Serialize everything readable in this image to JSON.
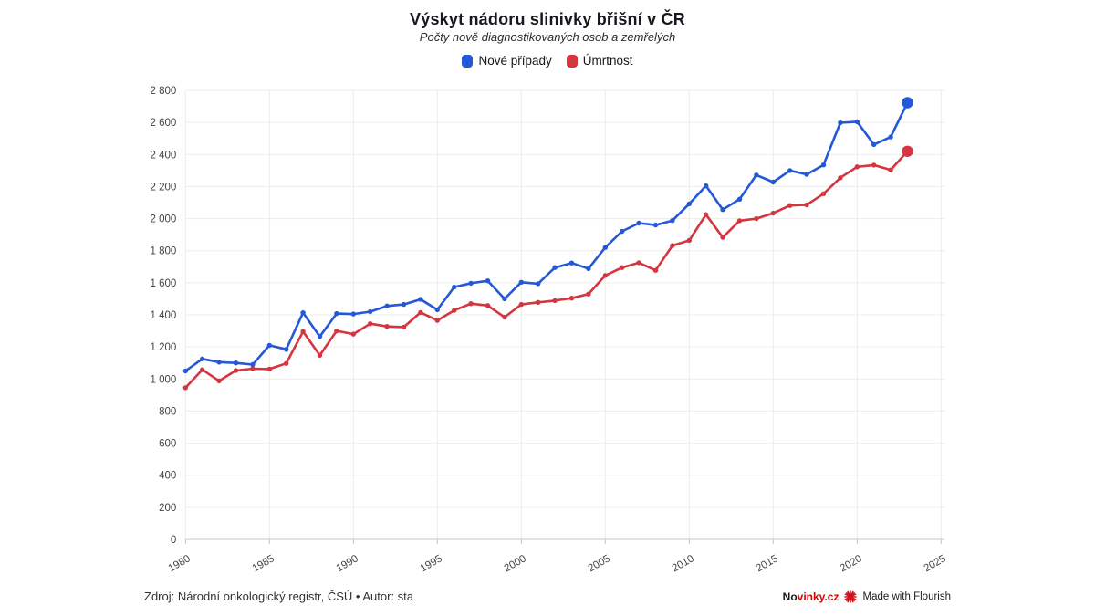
{
  "chart_data": {
    "type": "line",
    "title": "Výskyt nádoru slinivky břišní v ČR",
    "subtitle": "Počty nově diagnostikovaných osob a zemřelých",
    "xlabel": "",
    "ylabel": "",
    "xlim": [
      1980,
      2025
    ],
    "ylim": [
      0,
      2800
    ],
    "grid": true,
    "legend_position": "top",
    "x": [
      1980,
      1981,
      1982,
      1983,
      1984,
      1985,
      1986,
      1987,
      1988,
      1989,
      1990,
      1991,
      1992,
      1993,
      1994,
      1995,
      1996,
      1997,
      1998,
      1999,
      2000,
      2001,
      2002,
      2003,
      2004,
      2005,
      2006,
      2007,
      2008,
      2009,
      2010,
      2011,
      2012,
      2013,
      2014,
      2015,
      2016,
      2017,
      2018,
      2019,
      2020,
      2021,
      2022,
      2023
    ],
    "series": [
      {
        "name": "Nové případy",
        "color": "#2458d6",
        "values": [
          1050,
          1125,
          1105,
          1100,
          1090,
          1210,
          1185,
          1413,
          1265,
          1408,
          1405,
          1420,
          1455,
          1465,
          1497,
          1432,
          1573,
          1597,
          1612,
          1500,
          1603,
          1594,
          1695,
          1723,
          1688,
          1820,
          1921,
          1972,
          1960,
          1988,
          2092,
          2205,
          2056,
          2121,
          2272,
          2228,
          2300,
          2276,
          2335,
          2598,
          2604,
          2462,
          2509,
          2723
        ]
      },
      {
        "name": "Úmrtnost",
        "color": "#d5353f",
        "values": [
          945,
          1058,
          988,
          1053,
          1064,
          1062,
          1097,
          1296,
          1148,
          1300,
          1280,
          1345,
          1328,
          1324,
          1415,
          1365,
          1428,
          1470,
          1458,
          1385,
          1465,
          1478,
          1489,
          1504,
          1530,
          1645,
          1695,
          1725,
          1678,
          1832,
          1864,
          2025,
          1883,
          1987,
          2000,
          2034,
          2082,
          2086,
          2155,
          2255,
          2323,
          2334,
          2304,
          2420
        ]
      }
    ],
    "xticks": [
      {
        "value": 1980,
        "label": "1980"
      },
      {
        "value": 1985,
        "label": "1985"
      },
      {
        "value": 1990,
        "label": "1990"
      },
      {
        "value": 1995,
        "label": "1995"
      },
      {
        "value": 2000,
        "label": "2000"
      },
      {
        "value": 2005,
        "label": "2005"
      },
      {
        "value": 2010,
        "label": "2010"
      },
      {
        "value": 2015,
        "label": "2015"
      },
      {
        "value": 2020,
        "label": "2020"
      },
      {
        "value": 2025,
        "label": "2025"
      }
    ],
    "yticks": [
      {
        "value": 0,
        "label": "0"
      },
      {
        "value": 200,
        "label": "200"
      },
      {
        "value": 400,
        "label": "400"
      },
      {
        "value": 600,
        "label": "600"
      },
      {
        "value": 800,
        "label": "800"
      },
      {
        "value": 1000,
        "label": "1 000"
      },
      {
        "value": 1200,
        "label": "1 200"
      },
      {
        "value": 1400,
        "label": "1 400"
      },
      {
        "value": 1600,
        "label": "1 600"
      },
      {
        "value": 1800,
        "label": "1 800"
      },
      {
        "value": 2000,
        "label": "2 000"
      },
      {
        "value": 2200,
        "label": "2 200"
      },
      {
        "value": 2400,
        "label": "2 400"
      },
      {
        "value": 2600,
        "label": "2 600"
      },
      {
        "value": 2800,
        "label": "2 800"
      }
    ]
  },
  "footer": {
    "source": "Zdroj: Národní onkologický registr, ČSÚ • Autor: sta",
    "brand_dark": "No",
    "brand_red": "vinky.cz",
    "made_with": "Made with Flourish"
  }
}
